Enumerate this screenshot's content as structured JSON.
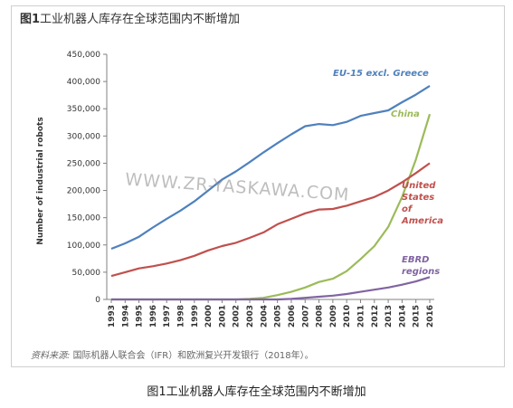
{
  "figure": {
    "title_prefix": "图1",
    "title_text": "工业机器人库存在全球范围内不断增加",
    "source_label": "资料来源:",
    "source_text": "国际机器人联合会（IFR）和欧洲复兴开发银行（2018年）。",
    "watermark": "WWW.ZR-YASKAWA.COM",
    "caption": "图1工业机器人库存在全球范围内不断增加"
  },
  "chart_data": {
    "type": "line",
    "title": "工业机器人库存在全球范围内不断增加",
    "ylabel": "Number of industrial robots",
    "xlabel": "",
    "ylim": [
      0,
      450000
    ],
    "yticks": [
      0,
      50000,
      100000,
      150000,
      200000,
      250000,
      300000,
      350000,
      400000,
      450000
    ],
    "ytick_labels": [
      "0",
      "50,000",
      "100,000",
      "150,000",
      "200,000",
      "250,000",
      "300,000",
      "350,000",
      "400,000",
      "450,000"
    ],
    "x": [
      "1993",
      "1994",
      "1995",
      "1996",
      "1997",
      "1998",
      "1999",
      "2000",
      "2001",
      "2002",
      "2003",
      "2004",
      "2005",
      "2006",
      "2007",
      "2008",
      "2009",
      "2010",
      "2011",
      "2012",
      "2013",
      "2014",
      "2015",
      "2016"
    ],
    "grid": false,
    "legend": "inline labels",
    "series": [
      {
        "name": "EU-15 excl. Greece",
        "label_lines": [
          "EU-15 excl. Greece"
        ],
        "color": "#4f81bd",
        "values": [
          93000,
          103000,
          115000,
          132000,
          148000,
          163000,
          180000,
          200000,
          220000,
          235000,
          252000,
          270000,
          287000,
          303000,
          318000,
          322000,
          320000,
          326000,
          337000,
          342000,
          347000,
          362000,
          376000,
          392000
        ]
      },
      {
        "name": "China",
        "label_lines": [
          "China"
        ],
        "color": "#9bbb59",
        "values": [
          0,
          0,
          0,
          0,
          0,
          0,
          0,
          0,
          0,
          0,
          1000,
          3000,
          8000,
          14000,
          22000,
          32000,
          38000,
          52000,
          74000,
          98000,
          133000,
          188000,
          257000,
          340000
        ]
      },
      {
        "name": "United States of America",
        "label_lines": [
          "United",
          "States",
          "of",
          "America"
        ],
        "color": "#c0504d",
        "values": [
          43000,
          50000,
          57000,
          61000,
          66000,
          72000,
          80000,
          90000,
          98000,
          104000,
          113000,
          123000,
          138000,
          148000,
          158000,
          165000,
          166000,
          172000,
          180000,
          188000,
          200000,
          215000,
          232000,
          250000
        ]
      },
      {
        "name": "EBRD regions",
        "label_lines": [
          "EBRD",
          "regions"
        ],
        "color": "#8064a2",
        "values": [
          0,
          0,
          0,
          0,
          0,
          0,
          0,
          0,
          0,
          0,
          0,
          0,
          0,
          1000,
          3000,
          5000,
          7000,
          10000,
          14000,
          18000,
          22000,
          27000,
          33000,
          41000
        ]
      }
    ]
  }
}
